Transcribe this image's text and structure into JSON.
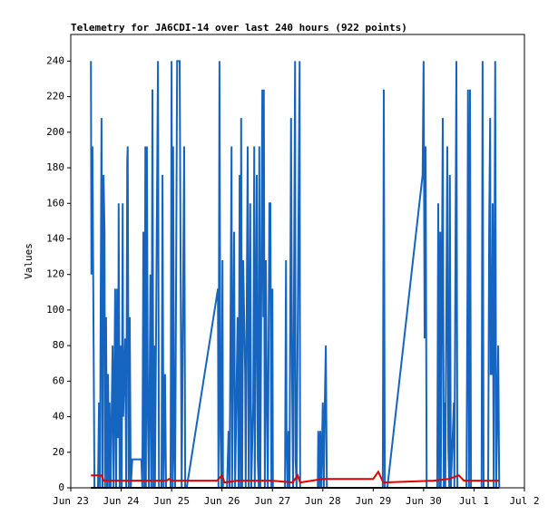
{
  "chart_data": {
    "type": "line",
    "title": "Telemetry for JA6CDI-14 over last 240 hours (922 points)",
    "y_label": "Values",
    "xlim": [
      0,
      9
    ],
    "xticks": [
      {
        "value": 0,
        "label": "Jun 23"
      },
      {
        "value": 1,
        "label": "Jun 24"
      },
      {
        "value": 2,
        "label": "Jun 25"
      },
      {
        "value": 3,
        "label": "Jun 26"
      },
      {
        "value": 4,
        "label": "Jun 27"
      },
      {
        "value": 5,
        "label": "Jun 28"
      },
      {
        "value": 6,
        "label": "Jun 29"
      },
      {
        "value": 7,
        "label": "Jun 30"
      },
      {
        "value": 8,
        "label": "Jul 1"
      },
      {
        "value": 9,
        "label": "Jul 2"
      }
    ],
    "ylim": [
      0,
      255
    ],
    "yticks": [
      0,
      20,
      40,
      60,
      80,
      100,
      120,
      140,
      160,
      180,
      200,
      220,
      240
    ],
    "series": [
      {
        "color": "#1565c0",
        "x": [
          0.4,
          0.41,
          0.43,
          0.47,
          0.54,
          0.56,
          0.58,
          0.59,
          0.61,
          0.63,
          0.65,
          0.67,
          0.68,
          0.7,
          0.72,
          0.74,
          0.76,
          0.77,
          0.79,
          0.83,
          0.85,
          0.88,
          0.9,
          0.92,
          0.94,
          0.95,
          0.97,
          0.99,
          1.01,
          1.03,
          1.04,
          1.08,
          1.1,
          1.12,
          1.13,
          1.15,
          1.17,
          1.19,
          1.22,
          1.4,
          1.42,
          1.44,
          1.46,
          1.48,
          1.49,
          1.51,
          1.53,
          1.55,
          1.58,
          1.6,
          1.62,
          1.64,
          1.66,
          1.67,
          1.71,
          1.73,
          1.75,
          1.8,
          1.82,
          1.84,
          1.87,
          1.89,
          1.98,
          2.0,
          2.02,
          2.03,
          2.05,
          2.07,
          2.11,
          2.16,
          2.2,
          2.25,
          2.27,
          2.3,
          2.92,
          2.93,
          2.95,
          2.97,
          2.99,
          3.01,
          3.02,
          3.1,
          3.13,
          3.15,
          3.19,
          3.2,
          3.24,
          3.26,
          3.31,
          3.33,
          3.35,
          3.37,
          3.38,
          3.4,
          3.42,
          3.46,
          3.47,
          3.51,
          3.53,
          3.56,
          3.58,
          3.62,
          3.64,
          3.65,
          3.69,
          3.71,
          3.73,
          3.74,
          3.76,
          3.8,
          3.82,
          3.83,
          3.85,
          3.87,
          3.89,
          3.91,
          3.94,
          3.96,
          3.98,
          4.0,
          4.01,
          4.25,
          4.27,
          4.28,
          4.3,
          4.32,
          4.34,
          4.37,
          4.39,
          4.41,
          4.45,
          4.46,
          4.48,
          4.54,
          4.55,
          4.9,
          4.91,
          4.93,
          4.95,
          4.97,
          5.0,
          5.02,
          5.04,
          5.06,
          5.08,
          6.19,
          6.21,
          6.23,
          6.28,
          6.98,
          7.0,
          7.02,
          7.04,
          7.06,
          7.27,
          7.29,
          7.31,
          7.33,
          7.34,
          7.38,
          7.4,
          7.42,
          7.43,
          7.47,
          7.49,
          7.51,
          7.52,
          7.54,
          7.6,
          7.61,
          7.65,
          7.67,
          7.85,
          7.87,
          7.88,
          7.9,
          7.92,
          7.94,
          8.15,
          8.17,
          8.19,
          8.28,
          8.3,
          8.32,
          8.33,
          8.35,
          8.37,
          8.39,
          8.42,
          8.44,
          8.46,
          8.48,
          8.5
        ],
        "values": [
          240,
          120,
          192,
          0,
          0,
          48,
          0,
          80,
          208,
          0,
          176,
          144,
          0,
          96,
          0,
          64,
          0,
          48,
          0,
          80,
          0,
          112,
          0,
          112,
          28,
          160,
          0,
          80,
          0,
          160,
          40,
          84,
          0,
          184,
          192,
          0,
          96,
          0,
          16,
          16,
          0,
          144,
          0,
          192,
          0,
          192,
          40,
          0,
          120,
          0,
          224,
          0,
          80,
          0,
          160,
          240,
          0,
          0,
          176,
          0,
          64,
          0,
          0,
          240,
          0,
          192,
          24,
          0,
          240,
          240,
          0,
          192,
          0,
          0,
          112,
          0,
          240,
          32,
          0,
          128,
          0,
          0,
          32,
          0,
          192,
          0,
          144,
          0,
          96,
          0,
          176,
          0,
          208,
          0,
          128,
          64,
          0,
          192,
          0,
          160,
          0,
          48,
          192,
          0,
          176,
          16,
          0,
          192,
          0,
          224,
          96,
          224,
          0,
          128,
          48,
          0,
          160,
          160,
          0,
          112,
          0,
          0,
          128,
          32,
          0,
          32,
          0,
          208,
          64,
          0,
          240,
          16,
          0,
          240,
          0,
          0,
          32,
          0,
          32,
          0,
          48,
          0,
          48,
          80,
          0,
          0,
          224,
          0,
          0,
          176,
          240,
          84,
          192,
          0,
          0,
          160,
          0,
          144,
          0,
          208,
          0,
          48,
          0,
          192,
          24,
          0,
          176,
          0,
          48,
          0,
          240,
          0,
          0,
          112,
          224,
          0,
          224,
          0,
          0,
          240,
          0,
          0,
          144,
          208,
          64,
          64,
          160,
          0,
          240,
          0,
          40,
          80,
          0
        ]
      },
      {
        "color": "#e00000",
        "x": [
          0.4,
          0.61,
          0.65,
          1.9,
          1.95,
          2.0,
          2.9,
          3.0,
          3.05,
          3.3,
          4.0,
          4.4,
          4.5,
          4.55,
          5.0,
          6.0,
          6.1,
          6.2,
          7.2,
          7.5,
          7.7,
          7.8,
          8.5
        ],
        "values": [
          7,
          7,
          4,
          4,
          5,
          4,
          4,
          7,
          3,
          4,
          4,
          3,
          7,
          3,
          5,
          5,
          9,
          3,
          4,
          5,
          7,
          4,
          4
        ]
      },
      {
        "color": "#000000",
        "x": [
          0.4,
          8.5
        ],
        "values": [
          0,
          0
        ]
      }
    ]
  }
}
